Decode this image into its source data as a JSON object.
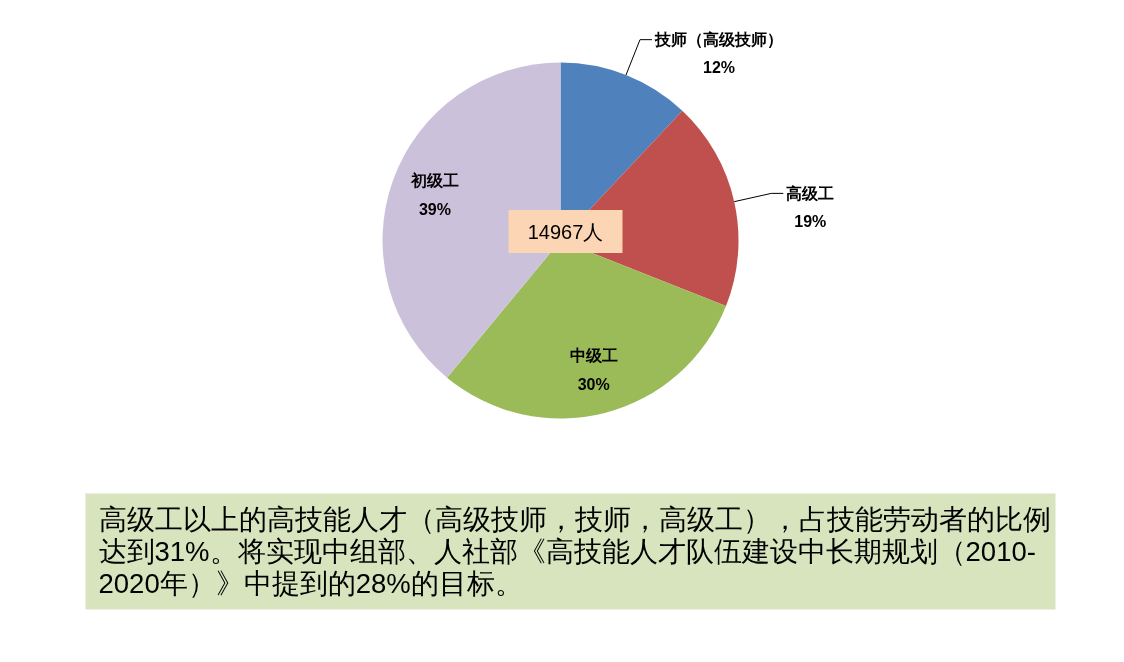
{
  "chart_data": {
    "type": "pie",
    "categories": [
      "技师（高级技师）",
      "高级工",
      "中级工",
      "初级工"
    ],
    "values": [
      12,
      19,
      30,
      39
    ],
    "colors": [
      "#4f81bd",
      "#c0504d",
      "#9bbb59",
      "#ccc1da"
    ],
    "value_labels": [
      "12%",
      "19%",
      "30%",
      "39%"
    ],
    "annotations": [
      "14967人",
      "高级工以上的高技能人才（高级技师，技师，高级工），占技能劳动者的比例达到31%。将实现中组部、人社部《高技能人才队伍建设中长期规划（2010-2020年）》中提到的28%的目标。"
    ]
  }
}
